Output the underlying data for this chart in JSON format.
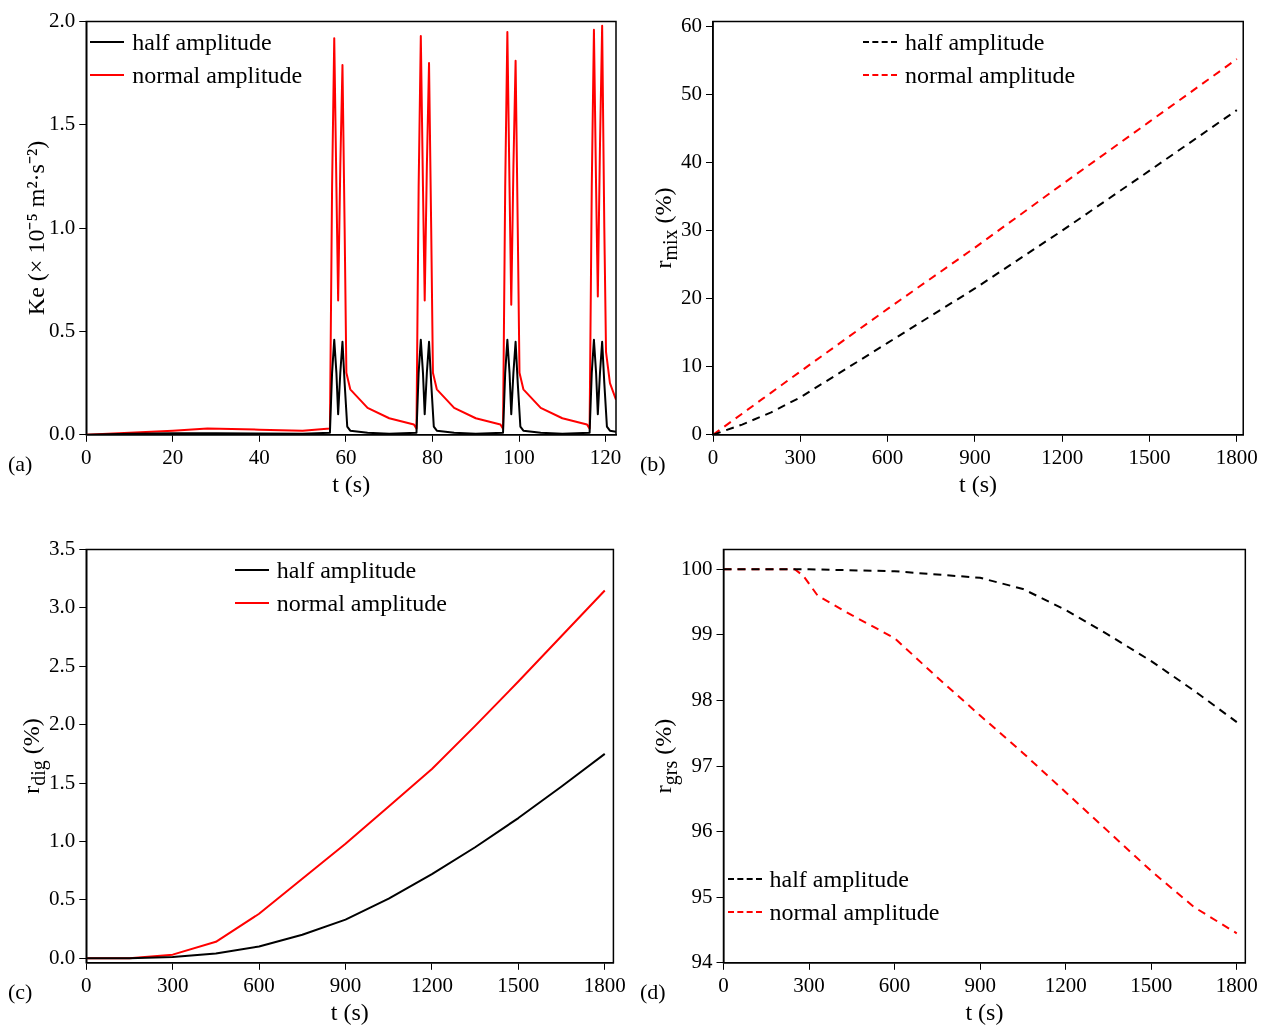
{
  "chart_data": [
    {
      "type": "line",
      "xlabel": "t (s)",
      "ylabel": "Ke (× 10⁻⁵ m²·s⁻²)",
      "annotations": [
        "(a)"
      ],
      "xlim": [
        0,
        122.4
      ],
      "xticks": [
        0,
        20,
        40,
        60,
        80,
        100,
        120
      ],
      "ylim": [
        0,
        2
      ],
      "yticks": [
        {
          "value": 0,
          "label": "0.0"
        },
        0.5,
        {
          "value": 1,
          "label": "1.0"
        },
        1.5,
        {
          "value": 2,
          "label": "2.0"
        }
      ],
      "legend": "top left",
      "marker": "none",
      "line_style": "solid",
      "series": [
        {
          "name": "half amplitude",
          "color": "#000000",
          "x": [
            0,
            10,
            20,
            30,
            40,
            50,
            56.3,
            56.8,
            57.3,
            57.8,
            58.2,
            58.7,
            59.2,
            59.7,
            60.3,
            61,
            65,
            70,
            76.3,
            76.8,
            77.3,
            77.8,
            78.2,
            78.7,
            79.2,
            79.7,
            80.3,
            81,
            85,
            90,
            96.3,
            96.8,
            97.3,
            97.8,
            98.2,
            98.7,
            99.2,
            99.7,
            100.3,
            101,
            105,
            110,
            116.3,
            116.8,
            117.3,
            117.8,
            118.2,
            118.7,
            119.2,
            119.7,
            120.3,
            121,
            122.4
          ],
          "values": [
            0,
            0.005,
            0.008,
            0.008,
            0.006,
            0.005,
            0.01,
            0.3,
            0.46,
            0.3,
            0.1,
            0.3,
            0.45,
            0.25,
            0.04,
            0.02,
            0.01,
            0.005,
            0.01,
            0.3,
            0.46,
            0.3,
            0.1,
            0.3,
            0.45,
            0.25,
            0.04,
            0.02,
            0.01,
            0.005,
            0.01,
            0.3,
            0.46,
            0.3,
            0.1,
            0.3,
            0.45,
            0.25,
            0.04,
            0.02,
            0.01,
            0.005,
            0.01,
            0.3,
            0.46,
            0.3,
            0.1,
            0.3,
            0.45,
            0.25,
            0.04,
            0.02,
            0.015
          ]
        },
        {
          "name": "normal amplitude",
          "color": "#ff0000",
          "x": [
            0,
            10,
            20,
            28,
            40,
            50,
            56.3,
            56.8,
            57.3,
            57.8,
            58.2,
            58.7,
            59.2,
            59.7,
            60.1,
            61,
            65,
            70,
            75.7,
            76.3,
            76.8,
            77.3,
            77.8,
            78.2,
            78.7,
            79.2,
            79.7,
            80.1,
            81,
            85,
            90,
            95.7,
            96.3,
            96.8,
            97.3,
            97.8,
            98.2,
            98.7,
            99.2,
            99.7,
            100.1,
            101,
            105,
            110,
            115.7,
            116.3,
            116.8,
            117.3,
            117.8,
            118.2,
            118.7,
            119.2,
            119.7,
            120.1,
            121,
            122.4
          ],
          "values": [
            0,
            0.01,
            0.02,
            0.03,
            0.025,
            0.02,
            0.03,
            1.2,
            1.92,
            1.2,
            0.65,
            1.3,
            1.79,
            1.0,
            0.3,
            0.22,
            0.13,
            0.08,
            0.05,
            0.03,
            1.2,
            1.93,
            1.2,
            0.65,
            1.3,
            1.8,
            1.0,
            0.3,
            0.22,
            0.13,
            0.08,
            0.05,
            0.03,
            1.2,
            1.95,
            1.2,
            0.63,
            1.3,
            1.81,
            1.0,
            0.3,
            0.22,
            0.13,
            0.08,
            0.05,
            0.03,
            1.2,
            1.96,
            1.2,
            0.67,
            1.4,
            1.98,
            1.0,
            0.4,
            0.25,
            0.17
          ]
        }
      ]
    },
    {
      "type": "line",
      "xlabel": "t (s)",
      "ylabel": "r$_{mix}$ (%)",
      "annotations": [
        "(b)"
      ],
      "xlim": [
        0,
        1822
      ],
      "xticks": [
        0,
        300,
        600,
        900,
        1200,
        1500,
        1800
      ],
      "ylim": [
        0,
        60.7
      ],
      "yticks": [
        0,
        10,
        20,
        30,
        40,
        50,
        60
      ],
      "legend": "top",
      "marker": "none",
      "line_style": "dashed",
      "x": [
        0,
        100,
        200,
        300,
        450,
        600,
        900,
        1200,
        1500,
        1800
      ],
      "series": [
        {
          "name": "half amplitude",
          "color": "#000000",
          "values": [
            0,
            1.5,
            3.3,
            5.5,
            9.5,
            13.5,
            21.5,
            30,
            38.8,
            47.7
          ]
        },
        {
          "name": "normal amplitude",
          "color": "#ff0000",
          "values": [
            0,
            3.1,
            6.2,
            9.3,
            13.9,
            18.5,
            27.5,
            36.8,
            46,
            55.2
          ]
        }
      ]
    },
    {
      "type": "line",
      "xlabel": "t (s)",
      "ylabel": "r$_{dig}$ (%)",
      "annotations": [
        "(c)"
      ],
      "xlim": [
        0,
        1830
      ],
      "xticks": [
        0,
        300,
        600,
        900,
        1200,
        1500,
        1800
      ],
      "ylim": [
        -0.04,
        3.5
      ],
      "yticks": [
        {
          "value": 0,
          "label": "0.0"
        },
        0.5,
        {
          "value": 1,
          "label": "1.0"
        },
        1.5,
        {
          "value": 2,
          "label": "2.0"
        },
        2.5,
        {
          "value": 3,
          "label": "3.0"
        },
        3.5
      ],
      "legend": "top",
      "marker": "none",
      "line_style": "solid",
      "x": [
        0,
        150,
        300,
        450,
        600,
        750,
        900,
        1050,
        1200,
        1350,
        1500,
        1650,
        1800
      ],
      "series": [
        {
          "name": "half amplitude",
          "color": "#000000",
          "values": [
            0,
            0,
            0.01,
            0.04,
            0.1,
            0.2,
            0.33,
            0.51,
            0.72,
            0.95,
            1.2,
            1.47,
            1.75
          ]
        },
        {
          "name": "normal amplitude",
          "color": "#ff0000",
          "values": [
            0,
            0,
            0.03,
            0.14,
            0.38,
            0.68,
            0.98,
            1.3,
            1.62,
            1.99,
            2.37,
            2.76,
            3.15
          ]
        }
      ]
    },
    {
      "type": "line",
      "xlabel": "t (s)",
      "ylabel": "r$_{grs}$ (%)",
      "annotations": [
        "(d)"
      ],
      "xlim": [
        0,
        1830
      ],
      "xticks": [
        0,
        300,
        600,
        900,
        1200,
        1500,
        1800
      ],
      "ylim": [
        94,
        100.3
      ],
      "yticks": [
        94,
        95,
        96,
        97,
        98,
        99,
        100
      ],
      "legend": "bottom left",
      "marker": "none",
      "line_style": "dashed",
      "series": [
        {
          "name": "half amplitude",
          "color": "#000000",
          "x": [
            0,
            300,
            600,
            900,
            1050,
            1200,
            1350,
            1500,
            1650,
            1800
          ],
          "values": [
            100,
            100,
            99.97,
            99.87,
            99.7,
            99.38,
            99.0,
            98.6,
            98.15,
            97.67
          ]
        },
        {
          "name": "normal amplitude",
          "color": "#ff0000",
          "x": [
            0,
            250,
            280,
            330,
            450,
            600,
            750,
            900,
            1050,
            1200,
            1350,
            1500,
            1650,
            1800
          ],
          "values": [
            100,
            100,
            99.9,
            99.6,
            99.3,
            98.95,
            98.35,
            97.77,
            97.2,
            96.6,
            96.0,
            95.4,
            94.85,
            94.45
          ]
        }
      ]
    }
  ]
}
